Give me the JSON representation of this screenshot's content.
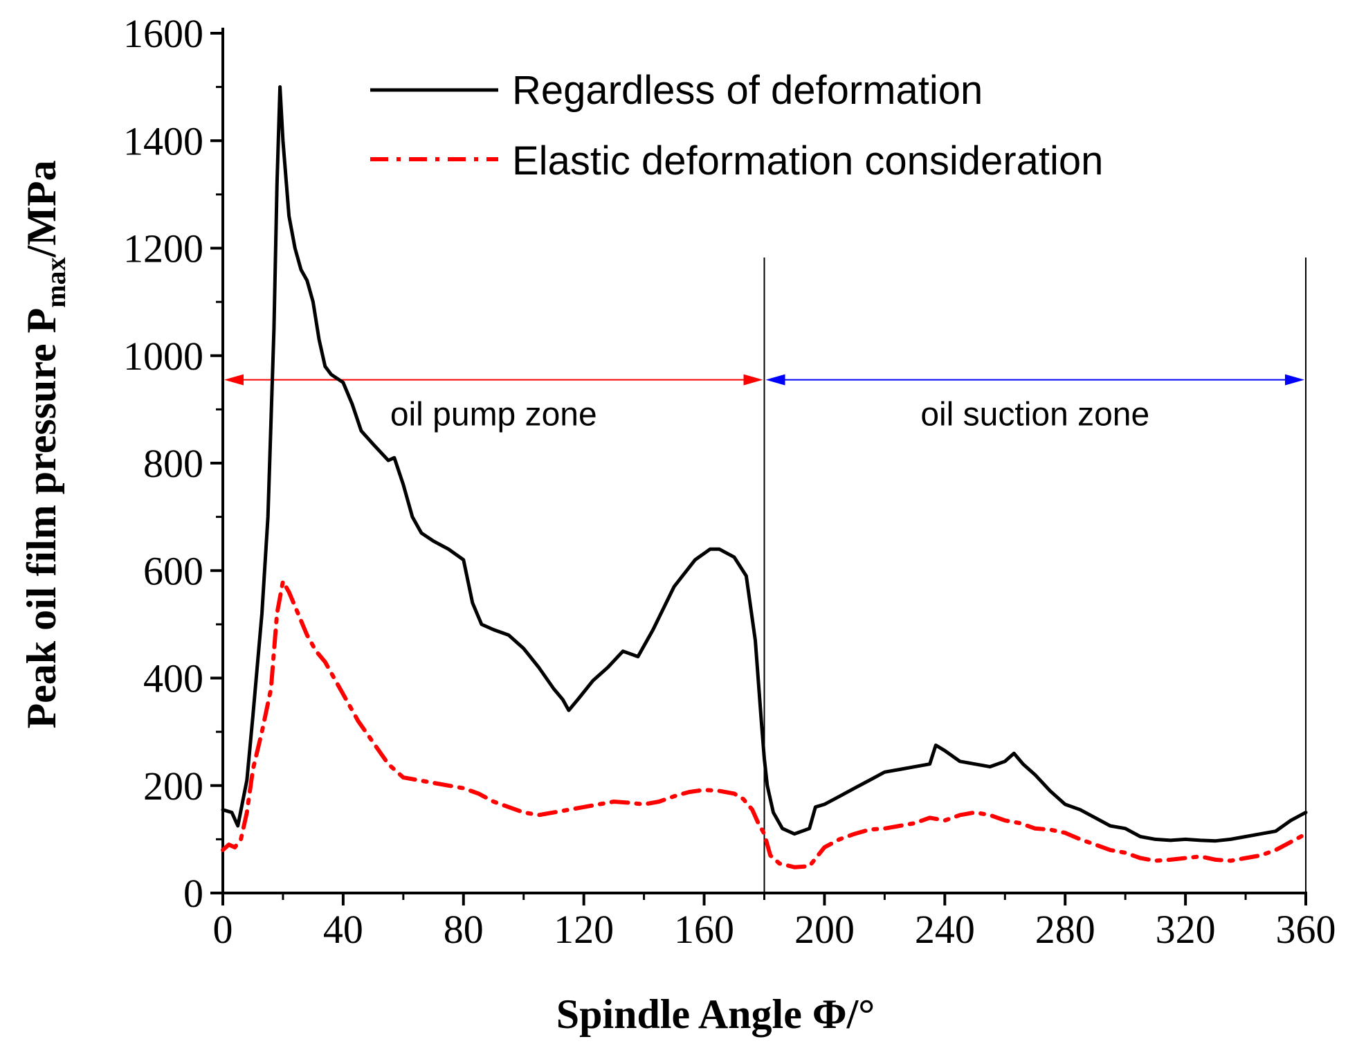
{
  "chart_data": {
    "type": "line",
    "xlabel": "Spindle Angle Φ/°",
    "ylabel": "Peak oil film pressure",
    "ylabel_symbol": "P",
    "ylabel_subscript": "max",
    "ylabel_unit": "/MPa",
    "xlim": [
      0,
      360
    ],
    "ylim": [
      0,
      1600
    ],
    "xticks": [
      0,
      40,
      80,
      120,
      160,
      200,
      240,
      280,
      320,
      360
    ],
    "yticks": [
      0,
      200,
      400,
      600,
      800,
      1000,
      1200,
      1400,
      1600
    ],
    "grid": false,
    "legend_position": "top-right",
    "series": [
      {
        "name": "Regardless of deformation",
        "color": "#000000",
        "style": "solid",
        "x": [
          0,
          3,
          5,
          8,
          10,
          13,
          15,
          17,
          18,
          19,
          20,
          22,
          24,
          26,
          28,
          30,
          32,
          34,
          36,
          40,
          43,
          46,
          50,
          55,
          57,
          60,
          63,
          66,
          70,
          75,
          80,
          83,
          86,
          90,
          95,
          100,
          105,
          110,
          113,
          115,
          118,
          123,
          128,
          133,
          138,
          143,
          150,
          157,
          162,
          165,
          170,
          174,
          177,
          179,
          180,
          181,
          183,
          186,
          190,
          195,
          197,
          200,
          205,
          210,
          215,
          220,
          225,
          230,
          235,
          237,
          240,
          245,
          250,
          255,
          260,
          263,
          266,
          270,
          275,
          280,
          285,
          290,
          295,
          300,
          305,
          310,
          315,
          320,
          325,
          330,
          335,
          340,
          345,
          350,
          355,
          360
        ],
        "y": [
          155,
          150,
          125,
          210,
          330,
          520,
          700,
          1050,
          1320,
          1500,
          1400,
          1260,
          1200,
          1160,
          1140,
          1100,
          1030,
          980,
          965,
          950,
          910,
          860,
          835,
          805,
          810,
          760,
          700,
          670,
          655,
          640,
          620,
          540,
          500,
          490,
          480,
          455,
          420,
          380,
          360,
          340,
          360,
          395,
          420,
          450,
          440,
          490,
          570,
          620,
          640,
          640,
          625,
          590,
          470,
          320,
          250,
          200,
          150,
          120,
          110,
          120,
          160,
          165,
          180,
          195,
          210,
          225,
          230,
          235,
          240,
          275,
          265,
          245,
          240,
          235,
          245,
          260,
          240,
          220,
          190,
          165,
          155,
          140,
          125,
          120,
          105,
          100,
          98,
          100,
          98,
          97,
          100,
          105,
          110,
          115,
          135,
          150
        ]
      },
      {
        "name": "Elastic deformation consideration",
        "color": "#ff0000",
        "style": "dashdot",
        "x": [
          0,
          2,
          4,
          6,
          8,
          10,
          13,
          16,
          18,
          20,
          22,
          25,
          28,
          31,
          34,
          37,
          40,
          45,
          50,
          55,
          60,
          65,
          70,
          75,
          80,
          85,
          90,
          95,
          100,
          105,
          110,
          115,
          120,
          125,
          130,
          135,
          140,
          145,
          150,
          155,
          160,
          165,
          170,
          173,
          176,
          178,
          180,
          182,
          185,
          190,
          195,
          200,
          205,
          210,
          215,
          220,
          225,
          230,
          235,
          240,
          245,
          250,
          255,
          260,
          265,
          270,
          275,
          280,
          285,
          290,
          295,
          300,
          305,
          310,
          315,
          320,
          325,
          330,
          335,
          340,
          345,
          350,
          355,
          360
        ],
        "y": [
          80,
          90,
          85,
          100,
          150,
          230,
          300,
          380,
          520,
          580,
          560,
          520,
          480,
          450,
          430,
          400,
          370,
          320,
          280,
          240,
          215,
          210,
          205,
          200,
          195,
          185,
          170,
          160,
          150,
          145,
          150,
          155,
          160,
          165,
          170,
          168,
          165,
          170,
          180,
          188,
          192,
          190,
          185,
          175,
          155,
          130,
          110,
          70,
          55,
          48,
          50,
          85,
          100,
          110,
          118,
          120,
          125,
          130,
          140,
          135,
          145,
          150,
          145,
          135,
          130,
          120,
          118,
          112,
          100,
          90,
          80,
          75,
          65,
          60,
          62,
          65,
          68,
          62,
          60,
          65,
          70,
          80,
          95,
          110
        ]
      }
    ],
    "annotations": [
      {
        "text": "oil pump zone",
        "from": 0,
        "to": 180,
        "y": 955,
        "color": "#ff0000"
      },
      {
        "text": "oil suction zone",
        "from": 180,
        "to": 360,
        "y": 955,
        "color": "#0000ff"
      }
    ],
    "vertical_lines": [
      180,
      360
    ]
  }
}
